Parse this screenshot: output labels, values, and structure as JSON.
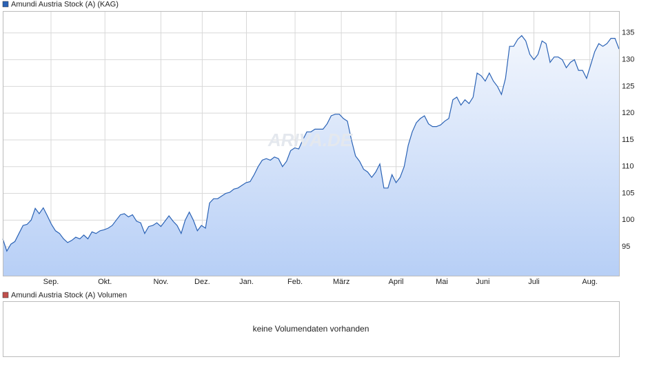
{
  "chart_data": {
    "type": "line",
    "area": true,
    "series": [
      {
        "name": "Amundi Austria Stock (A) (KAG)",
        "color": "#2a62b5",
        "values": [
          96.5,
          94.2,
          95.5,
          96,
          97.5,
          99,
          99.2,
          100,
          102.2,
          101.2,
          102.3,
          100.8,
          99.2,
          98,
          97.5,
          96.5,
          95.8,
          96.2,
          96.8,
          96.5,
          97.2,
          96.5,
          97.8,
          97.5,
          98,
          98.2,
          98.5,
          99,
          100,
          101,
          101.2,
          100.6,
          101,
          99.8,
          99.5,
          97.5,
          98.8,
          99,
          99.5,
          98.8,
          99.8,
          100.8,
          99.8,
          99,
          97.5,
          100,
          101.5,
          100,
          98,
          99,
          98.5,
          103.2,
          104,
          104,
          104.5,
          105,
          105.2,
          105.8,
          106,
          106.5,
          107,
          107.2,
          108.5,
          110,
          111.2,
          111.5,
          111.2,
          111.8,
          111.5,
          110,
          111,
          113,
          113.5,
          113.3,
          115,
          116.5,
          116.5,
          117,
          117,
          117,
          118,
          119.5,
          119.8,
          119.8,
          119,
          118.5,
          115,
          112,
          111,
          109.5,
          109,
          108,
          109,
          110.5,
          106,
          106,
          108.5,
          107,
          108,
          110,
          114,
          116.5,
          118.2,
          119,
          119.5,
          118,
          117.5,
          117.5,
          117.8,
          118.5,
          119,
          122.5,
          123,
          121.5,
          122.5,
          121.8,
          123,
          127.5,
          127,
          126,
          127.5,
          126,
          125,
          123.5,
          126.5,
          132.5,
          132.5,
          133.8,
          134.5,
          133.5,
          131,
          130,
          131,
          133.5,
          133,
          129.5,
          130.5,
          130.5,
          130,
          128.5,
          129.5,
          130,
          128,
          128,
          126.5,
          129,
          131.5,
          133,
          132.5,
          133,
          134,
          134,
          132
        ]
      }
    ],
    "xlim": [
      0,
      152
    ],
    "xticks": [
      {
        "value": 11.9,
        "label": "Sep."
      },
      {
        "value": 25.2,
        "label": "Okt."
      },
      {
        "value": 39,
        "label": "Nov."
      },
      {
        "value": 49.2,
        "label": "Dez."
      },
      {
        "value": 60.1,
        "label": "Jan."
      },
      {
        "value": 72.1,
        "label": "Feb."
      },
      {
        "value": 83.5,
        "label": "März"
      },
      {
        "value": 97,
        "label": "April"
      },
      {
        "value": 108.3,
        "label": "Mai"
      },
      {
        "value": 118.4,
        "label": "Juni"
      },
      {
        "value": 131,
        "label": "Juli"
      },
      {
        "value": 144.8,
        "label": "Aug."
      }
    ],
    "ylim": [
      89.6,
      139.1
    ],
    "yticks": [
      95,
      100,
      105,
      110,
      115,
      120,
      125,
      130,
      135
    ],
    "grid": true,
    "watermark": "ARIVA.DE"
  },
  "volume_panel": {
    "legend": "Amundi Austria Stock (A) Volumen",
    "color": "#c0504d",
    "message": "keine Volumendaten vorhanden"
  }
}
